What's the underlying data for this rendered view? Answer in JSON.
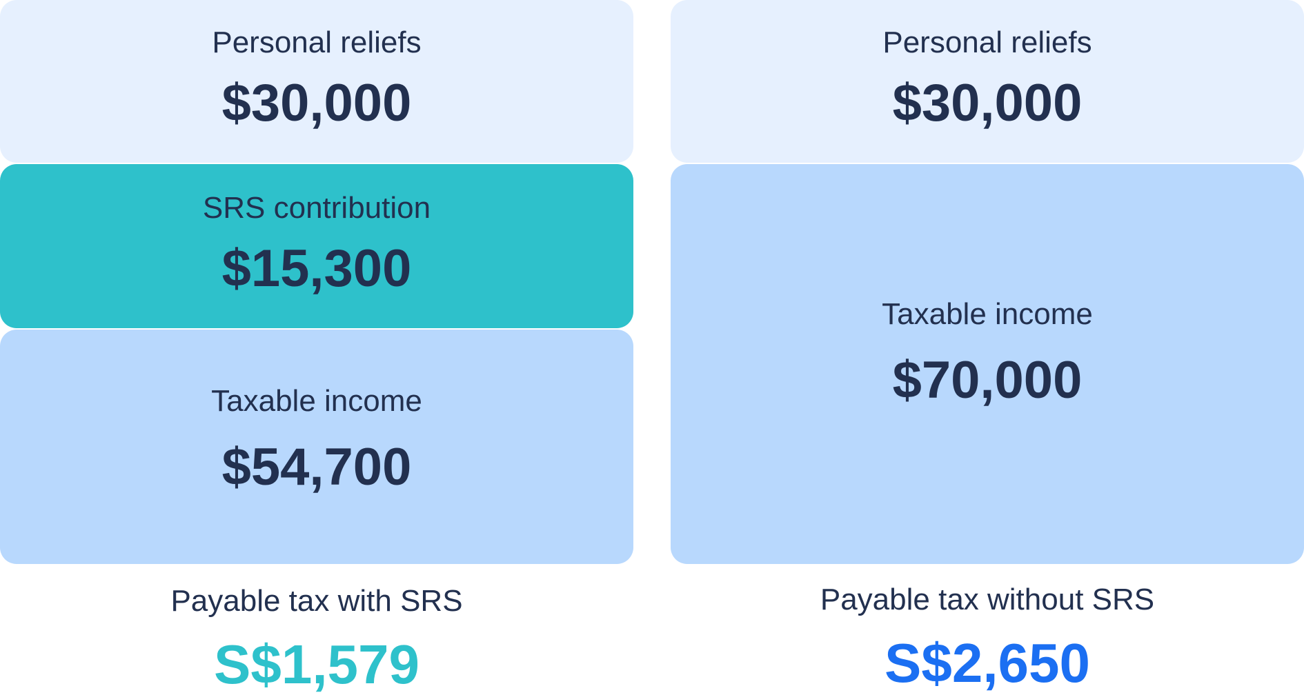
{
  "with_srs": {
    "personal_reliefs": {
      "label": "Personal reliefs",
      "value": "$30,000"
    },
    "srs_contribution": {
      "label": "SRS contribution",
      "value": "$15,300"
    },
    "taxable_income": {
      "label": "Taxable income",
      "value": "$54,700"
    },
    "payable_tax": {
      "label": "Payable tax with SRS",
      "value": "S$1,579",
      "color": "#2ec1cb"
    }
  },
  "without_srs": {
    "personal_reliefs": {
      "label": "Personal reliefs",
      "value": "$30,000"
    },
    "taxable_income": {
      "label": "Taxable income",
      "value": "$70,000"
    },
    "payable_tax": {
      "label": "Payable tax without SRS",
      "value": "S$2,650",
      "color": "#1b6ff2"
    }
  },
  "colors": {
    "reliefs_box": "#e6f0fe",
    "srs_box": "#2ec1cb",
    "taxable_box": "#b8d8fd",
    "text": "#22304f"
  }
}
